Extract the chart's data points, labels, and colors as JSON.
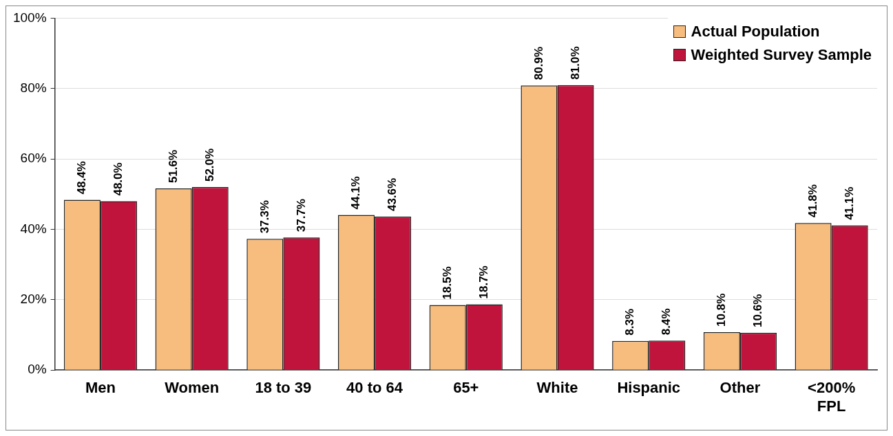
{
  "chart_data": {
    "type": "bar",
    "categories": [
      "Men",
      "Women",
      "18 to 39",
      "40 to 64",
      "65+",
      "White",
      "Hispanic",
      "Other",
      "<200% FPL"
    ],
    "series": [
      {
        "name": "Actual Population",
        "color": "#f7bd7f",
        "values": [
          48.4,
          51.6,
          37.3,
          44.1,
          18.5,
          80.9,
          8.3,
          10.8,
          41.8
        ],
        "value_labels": [
          "48.4%",
          "51.6%",
          "37.3%",
          "44.1%",
          "18.5%",
          "80.9%",
          "8.3%",
          "10.8%",
          "41.8%"
        ]
      },
      {
        "name": "Weighted Survey Sample",
        "color": "#c0143c",
        "values": [
          48.0,
          52.0,
          37.7,
          43.6,
          18.7,
          81.0,
          8.4,
          10.6,
          41.1
        ],
        "value_labels": [
          "48.0%",
          "52.0%",
          "37.7%",
          "43.6%",
          "18.7%",
          "81.0%",
          "8.4%",
          "10.6%",
          "41.1%"
        ]
      }
    ],
    "ylim": [
      0,
      100
    ],
    "yticks": [
      {
        "value": 0,
        "label": "0%"
      },
      {
        "value": 20,
        "label": "20%"
      },
      {
        "value": 40,
        "label": "40%"
      },
      {
        "value": 60,
        "label": "60%"
      },
      {
        "value": 80,
        "label": "80%"
      },
      {
        "value": 100,
        "label": "100%"
      }
    ],
    "grid": "y",
    "legend": "top right"
  }
}
